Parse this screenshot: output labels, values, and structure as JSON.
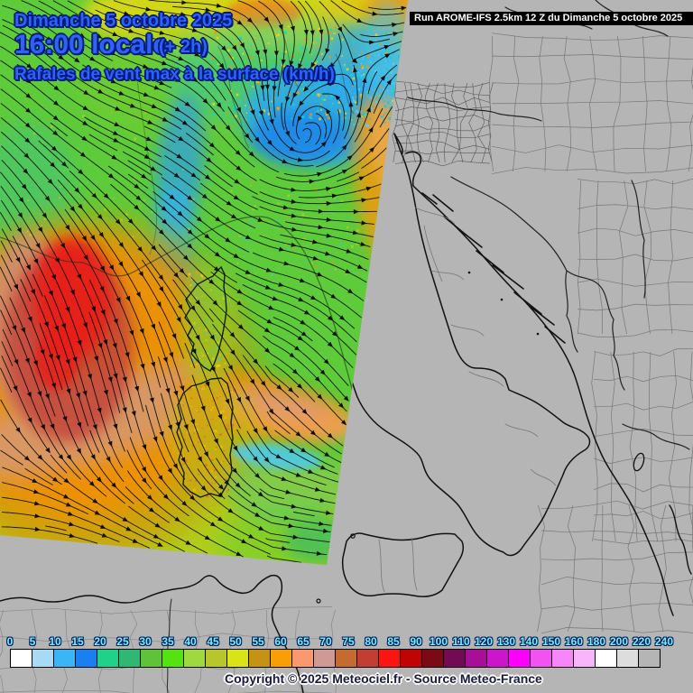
{
  "header": {
    "date_line": "Dimanche 5 octobre 2025",
    "time_line": "16:00 locale",
    "time_suffix": "(+ 2h)",
    "subtitle": "Rafales de vent max à la surface (km/h)",
    "title_color": "#2e63fa",
    "title_outline_color": "#001a80"
  },
  "run_banner": {
    "text": "Run AROME-IFS 2.5km 12 Z du Dimanche 5 octobre 2025",
    "bg": "#000000",
    "fg": "#ffffff"
  },
  "map": {
    "background_color": "#b5b5b5",
    "coastline_color": "#111111",
    "admin_border_color": "#777777"
  },
  "legend": {
    "tick_labels": [
      "0",
      "5",
      "10",
      "15",
      "20",
      "25",
      "30",
      "35",
      "40",
      "45",
      "50",
      "55",
      "60",
      "65",
      "70",
      "75",
      "80",
      "85",
      "90",
      "100",
      "110",
      "120",
      "130",
      "140",
      "150",
      "160",
      "180",
      "200",
      "220",
      "240"
    ],
    "box_colors": [
      "#ffffff",
      "#a8d9f5",
      "#3ab5f7",
      "#1a7ff0",
      "#1ed389",
      "#2eb873",
      "#5fc238",
      "#55e211",
      "#a0d840",
      "#b9c62b",
      "#d8e318",
      "#c59313",
      "#f99e07",
      "#fb9870",
      "#cf9a96",
      "#c56a31",
      "#c23e33",
      "#fb1511",
      "#c00303",
      "#7c0a14",
      "#720b53",
      "#a80f97",
      "#cb16cb",
      "#fb00fb",
      "#f152f1",
      "#f886f8",
      "#f9b5f9",
      "#ffffff",
      "#dddddd",
      "#b5b5b5"
    ],
    "tick_color": "#7deef8",
    "tick_outline_color": "#002060"
  },
  "footer": {
    "copyright": "Copyright © 2025 Meteociel.fr - Source Meteo-France"
  }
}
